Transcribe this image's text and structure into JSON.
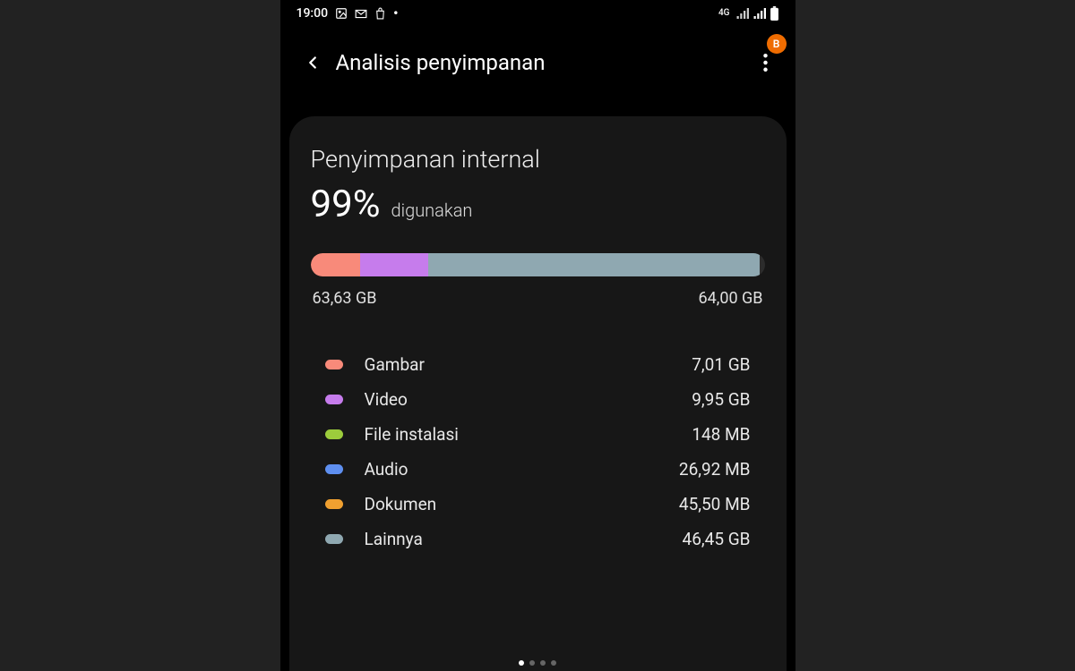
{
  "status": {
    "time": "19:00",
    "icons_left": [
      "image-icon",
      "gmail-icon",
      "shop-icon",
      "dot-icon"
    ],
    "network_label": "4G",
    "signal_bars": 2
  },
  "header": {
    "title": "Analisis penyimpanan",
    "badge_letter": "B",
    "badge_color": "#ef6c00"
  },
  "storage": {
    "card_title": "Penyimpanan internal",
    "percent": "99%",
    "percent_label": "digunakan",
    "used_label": "63,63 GB",
    "total_label": "64,00 GB",
    "bar_background": "#2c2c2c",
    "bar_segments": [
      {
        "color": "#f88a7a",
        "pct": 11
      },
      {
        "color": "#c67cec",
        "pct": 15
      },
      {
        "color": "#8fa8b1",
        "pct": 73
      }
    ],
    "categories": [
      {
        "name": "Gambar",
        "size": "7,01 GB",
        "color": "#f88a7a"
      },
      {
        "name": "Video",
        "size": "9,95 GB",
        "color": "#c67cec"
      },
      {
        "name": "File instalasi",
        "size": "148 MB",
        "color": "#9ccc3c"
      },
      {
        "name": "Audio",
        "size": "26,92 MB",
        "color": "#5e8ff0"
      },
      {
        "name": "Dokumen",
        "size": "45,50 MB",
        "color": "#f0a030"
      },
      {
        "name": "Lainnya",
        "size": "46,45 GB",
        "color": "#8fa8b1"
      }
    ]
  },
  "pager": {
    "count": 4,
    "active": 0
  },
  "colors": {
    "page_bg": "#222222",
    "phone_bg": "#000000",
    "card_bg": "#171717",
    "text": "#e8e8e8"
  }
}
